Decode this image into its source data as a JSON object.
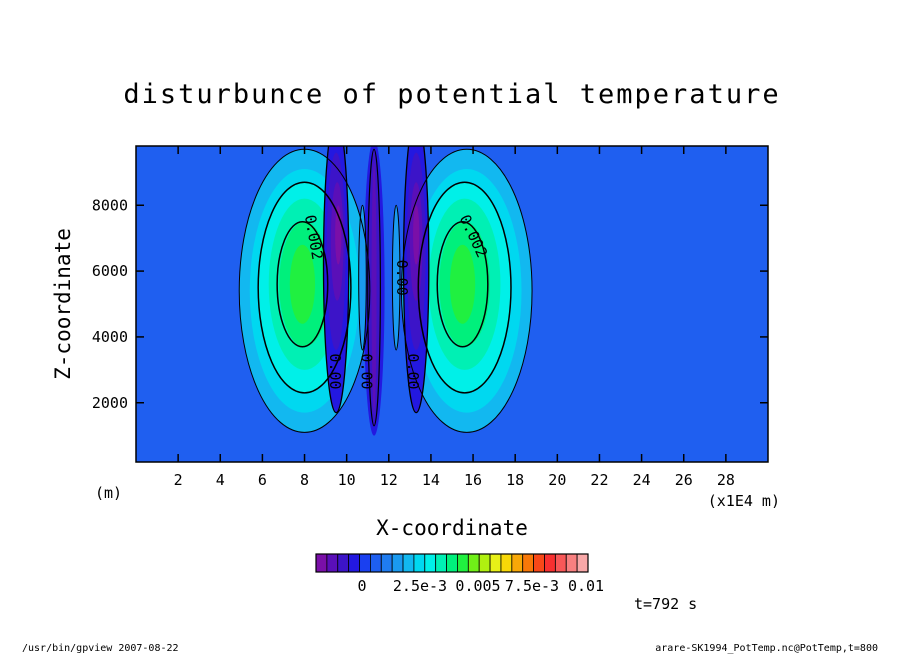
{
  "chart_data": {
    "type": "heatmap",
    "title": "disturbunce of potential temperature",
    "xlabel": "X-coordinate",
    "ylabel": "Z-coordinate",
    "x_unit_left": "(m)",
    "x_unit_right": "(x1E4 m)",
    "xlim": [
      0,
      30
    ],
    "ylim": [
      200,
      9800
    ],
    "x_ticks": [
      2,
      4,
      6,
      8,
      10,
      12,
      14,
      16,
      18,
      20,
      22,
      24,
      26,
      28
    ],
    "y_ticks": [
      2000,
      4000,
      6000,
      8000
    ],
    "background_level_color": "#1f5ff0",
    "contour_labels": [
      {
        "text": "0.002",
        "x": 8.2,
        "y": 7000
      },
      {
        "text": "0.002",
        "x": 15.8,
        "y": 7000
      },
      {
        "text": "0.00",
        "x": 12.4,
        "y": 5800
      },
      {
        "text": "0.00",
        "x": 9.2,
        "y": 2950
      },
      {
        "text": "0.00",
        "x": 10.7,
        "y": 2950
      },
      {
        "text": "0.00",
        "x": 12.9,
        "y": 2950
      }
    ],
    "colorbar": {
      "colors": [
        "#7a0fa8",
        "#5a0fb8",
        "#3c14c8",
        "#2318e0",
        "#1a40f0",
        "#1e5ff0",
        "#1f7cf0",
        "#1a9af0",
        "#12b8f0",
        "#00d8f0",
        "#00f0e8",
        "#00f0b4",
        "#00f07c",
        "#20f040",
        "#70f018",
        "#b0f010",
        "#e8f018",
        "#f8d808",
        "#f8a808",
        "#f87808",
        "#f84818",
        "#f83030",
        "#f85858",
        "#f88080",
        "#f8a8a8"
      ],
      "tick_labels": [
        "0",
        "2.5e-3",
        "0.005",
        "7.5e-3",
        "0.01"
      ]
    },
    "time_label": "t=792 s"
  },
  "footer": {
    "left": "/usr/bin/gpview   2007-08-22",
    "right": "arare-SK1994_PotTemp.nc@PotTemp,t=800"
  }
}
